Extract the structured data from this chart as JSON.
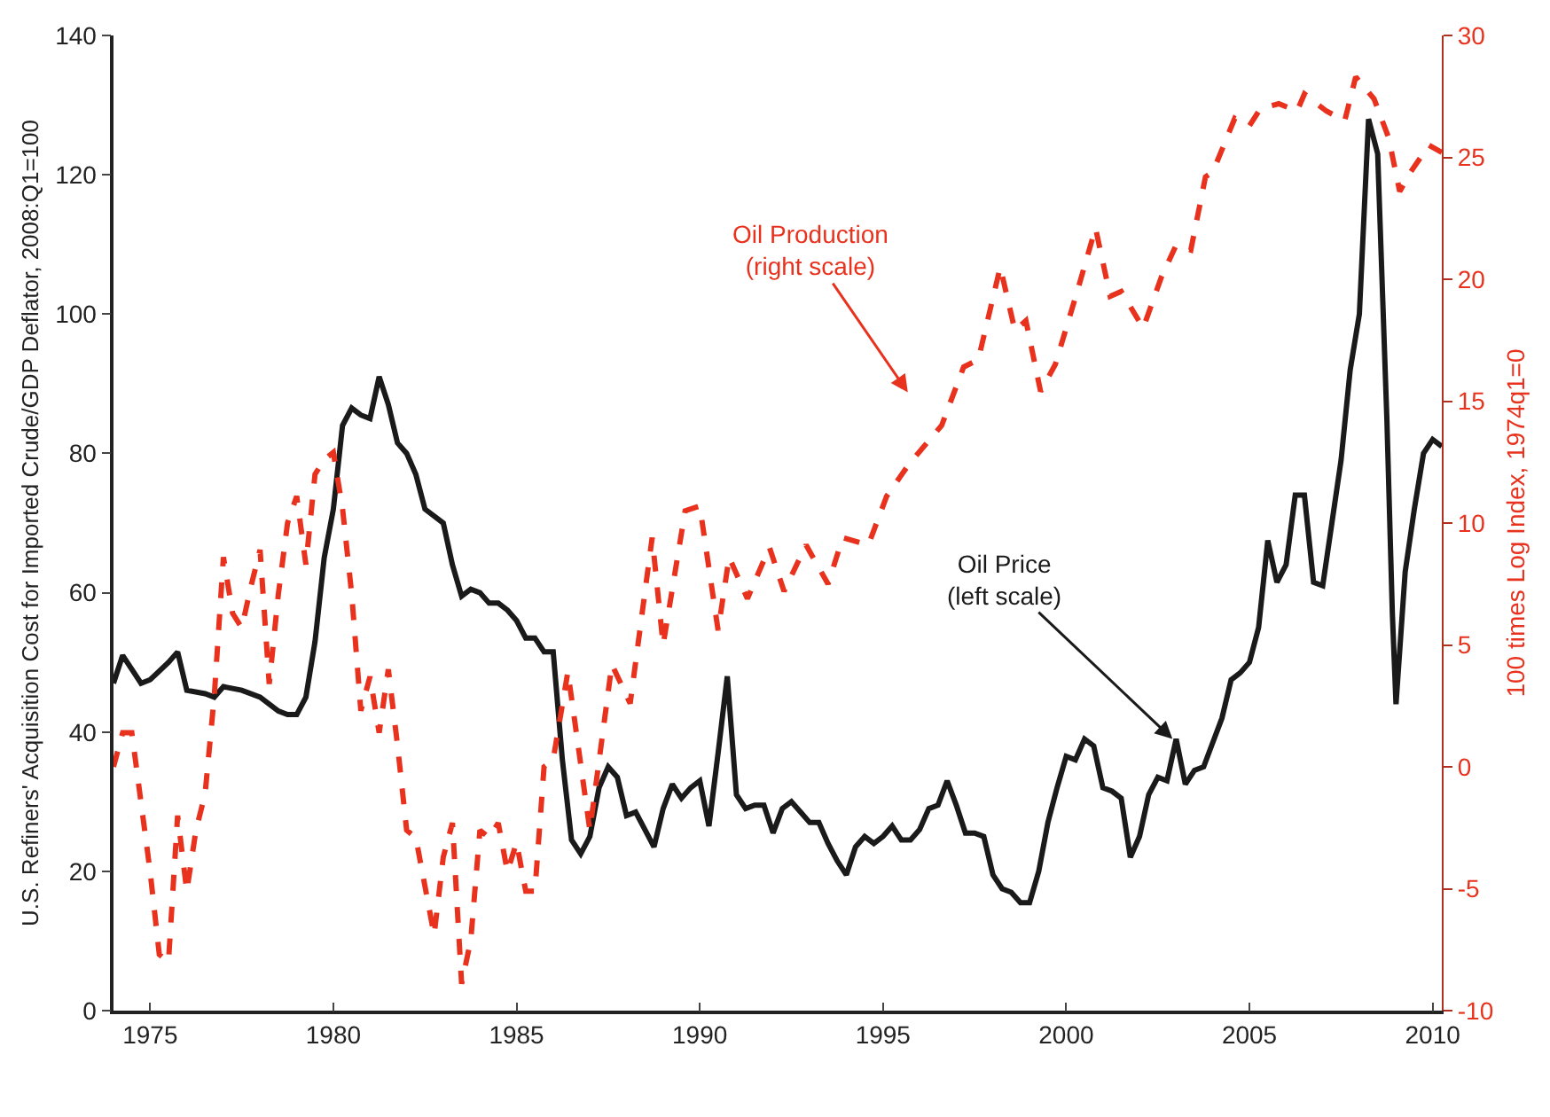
{
  "chart_data": {
    "type": "line",
    "xlabel": null,
    "ylabel": "U.S. Refiners' Acquisition Cost for Imported Crude/GDP Deflator, 2008:Q1=100",
    "y2label": "100 times Log Index, 1974q1=0",
    "xlim": [
      1974,
      2010.25
    ],
    "xticks": [
      1975,
      1980,
      1985,
      1990,
      1995,
      2000,
      2005,
      2010
    ],
    "ylim": [
      0,
      140
    ],
    "yticks": [
      0,
      20,
      40,
      60,
      80,
      100,
      120,
      140
    ],
    "y2lim": [
      -10,
      30
    ],
    "y2ticks": [
      -10,
      -5,
      0,
      5,
      10,
      15,
      20,
      25,
      30
    ],
    "series": [
      {
        "color": "#1a1a1a",
        "line_style": "solid",
        "axis": "y",
        "x": [
          1974.0,
          1974.25,
          1974.75,
          1975.0,
          1975.5,
          1975.75,
          1976.0,
          1976.5,
          1976.75,
          1977.0,
          1977.5,
          1978.0,
          1978.5,
          1978.75,
          1979.0,
          1979.25,
          1979.5,
          1979.75,
          1980.0,
          1980.25,
          1980.5,
          1980.75,
          1981.0,
          1981.25,
          1981.5,
          1981.75,
          1982.0,
          1982.25,
          1982.5,
          1982.75,
          1983.0,
          1983.25,
          1983.5,
          1983.75,
          1984.0,
          1984.25,
          1984.5,
          1984.75,
          1985.0,
          1985.25,
          1985.5,
          1985.75,
          1986.0,
          1986.25,
          1986.5,
          1986.75,
          1987.0,
          1987.25,
          1987.5,
          1987.75,
          1988.0,
          1988.25,
          1988.5,
          1988.75,
          1989.0,
          1989.25,
          1989.5,
          1989.75,
          1990.0,
          1990.25,
          1990.5,
          1990.75,
          1991.0,
          1991.25,
          1991.5,
          1991.75,
          1992.0,
          1992.25,
          1992.5,
          1992.75,
          1993.0,
          1993.25,
          1993.5,
          1993.75,
          1994.0,
          1994.25,
          1994.5,
          1994.75,
          1995.0,
          1995.25,
          1995.5,
          1995.75,
          1996.0,
          1996.25,
          1996.5,
          1996.75,
          1997.0,
          1997.25,
          1997.5,
          1997.75,
          1998.0,
          1998.25,
          1998.5,
          1998.75,
          1999.0,
          1999.25,
          1999.5,
          1999.75,
          2000.0,
          2000.25,
          2000.5,
          2000.75,
          2001.0,
          2001.25,
          2001.5,
          2001.75,
          2002.0,
          2002.25,
          2002.5,
          2002.75,
          2003.0,
          2003.25,
          2003.5,
          2003.75,
          2004.0,
          2004.25,
          2004.5,
          2004.75,
          2005.0,
          2005.25,
          2005.5,
          2005.75,
          2006.0,
          2006.25,
          2006.5,
          2006.75,
          2007.0,
          2007.25,
          2007.5,
          2007.75,
          2008.0,
          2008.25,
          2008.5,
          2008.75,
          2008.9,
          2009.0,
          2009.25,
          2009.5,
          2009.75,
          2010.0,
          2010.25
        ],
        "values": [
          47,
          51,
          47,
          47.5,
          50,
          51.5,
          46,
          45.5,
          45,
          46.5,
          46,
          45,
          43,
          42.5,
          42.5,
          45,
          53,
          65,
          72,
          84,
          86.5,
          85.5,
          85,
          91,
          87,
          81.5,
          80,
          77,
          72,
          71,
          70,
          64,
          59.5,
          60.5,
          60,
          58.5,
          58.5,
          57.5,
          56,
          53.5,
          53.5,
          51.5,
          51.5,
          36,
          24.5,
          22.5,
          25,
          32,
          35,
          33.5,
          28,
          28.5,
          26,
          23.5,
          29,
          32.5,
          30.5,
          32,
          33,
          26.5,
          37,
          48,
          31,
          29,
          29.5,
          29.5,
          25.5,
          29,
          30,
          28.5,
          27,
          27,
          24,
          21.5,
          19.5,
          23.5,
          25,
          24,
          25,
          26.5,
          24.5,
          24.5,
          26,
          29,
          29.5,
          33,
          29.5,
          25.5,
          25.5,
          25,
          19.5,
          17.5,
          17,
          15.5,
          15.5,
          20,
          27,
          32,
          36.5,
          36,
          39,
          38,
          32,
          31.5,
          30.5,
          22,
          25,
          31,
          33.5,
          33,
          39,
          32.5,
          34.5,
          35,
          38.5,
          42,
          47.5,
          48.5,
          50,
          55,
          67.5,
          61.5,
          64,
          74,
          74,
          61.5,
          61,
          70,
          79,
          92,
          100,
          128,
          123,
          85,
          57,
          44,
          63,
          72,
          80,
          82,
          81
        ]
      },
      {
        "color": "#e8321e",
        "line_style": "dashed",
        "axis": "y2",
        "x": [
          1974.0,
          1974.25,
          1974.5,
          1975.0,
          1975.25,
          1975.5,
          1975.75,
          1976.0,
          1976.25,
          1976.5,
          1976.75,
          1977.0,
          1977.25,
          1977.5,
          1977.75,
          1978.0,
          1978.25,
          1978.5,
          1978.75,
          1979.0,
          1979.25,
          1979.5,
          1979.75,
          1980.0,
          1980.25,
          1980.5,
          1980.75,
          1981.0,
          1981.25,
          1981.5,
          1981.75,
          1982.0,
          1982.25,
          1982.5,
          1982.75,
          1983.0,
          1983.25,
          1983.5,
          1983.75,
          1984.0,
          1984.25,
          1984.5,
          1984.75,
          1985.0,
          1985.25,
          1985.5,
          1985.75,
          1986.0,
          1986.4,
          1987.0,
          1987.6,
          1988.1,
          1988.7,
          1989.0,
          1989.6,
          1990.0,
          1990.5,
          1990.8,
          1991.3,
          1991.9,
          1992.3,
          1992.9,
          1993.5,
          1993.9,
          1994.6,
          1995.1,
          1995.7,
          1996.6,
          1997.2,
          1997.6,
          1998.2,
          1998.6,
          1998.9,
          1999.3,
          1999.7,
          2000.3,
          2000.8,
          2001.2,
          2001.5,
          2002.1,
          2002.6,
          2003.0,
          2003.4,
          2003.8,
          2004.0,
          2004.6,
          2005.0,
          2005.3,
          2005.8,
          2006.3,
          2006.5,
          2007.1,
          2007.6,
          2007.9,
          2008.4,
          2008.8,
          2009.1,
          2009.4,
          2009.9,
          2010.25
        ],
        "values": [
          0,
          1.4,
          1.4,
          -4.3,
          -7.7,
          -8,
          -2,
          -5.1,
          -2.6,
          -1.1,
          2.9,
          8.6,
          6.3,
          5.7,
          7.4,
          8.9,
          3.4,
          7.1,
          10,
          11.1,
          8.3,
          12,
          12.6,
          12.9,
          10.6,
          7.1,
          2.3,
          3.7,
          1.4,
          4,
          0.9,
          -2.6,
          -2.9,
          -4.9,
          -6.9,
          -3.7,
          -2.3,
          -8.9,
          -7.1,
          -2.6,
          -2.9,
          -2.3,
          -4.3,
          -3.1,
          -5.1,
          -5.1,
          0,
          0.3,
          3.9,
          -2.6,
          4.2,
          2.6,
          9.4,
          5,
          10.5,
          10.7,
          5.6,
          8.6,
          6.9,
          9,
          7.2,
          9.1,
          7.5,
          9.4,
          9.1,
          11.1,
          12.4,
          14,
          16.4,
          16.7,
          20.5,
          17.9,
          18.3,
          15.4,
          16.5,
          19.5,
          22.1,
          19.3,
          19.5,
          18,
          20.1,
          21.4,
          21.2,
          24.2,
          24.4,
          26.6,
          26.3,
          27,
          27.2,
          26.9,
          27.6,
          26.9,
          26.5,
          28.3,
          27.4,
          25.8,
          23.6,
          24.4,
          25.5,
          25.2
        ]
      }
    ],
    "annotations": [
      "Oil Production\n(right scale)",
      {
        "text": "Oil Price\n(left scale)",
        "x": 2002.9,
        "y": 39.0
      }
    ]
  }
}
